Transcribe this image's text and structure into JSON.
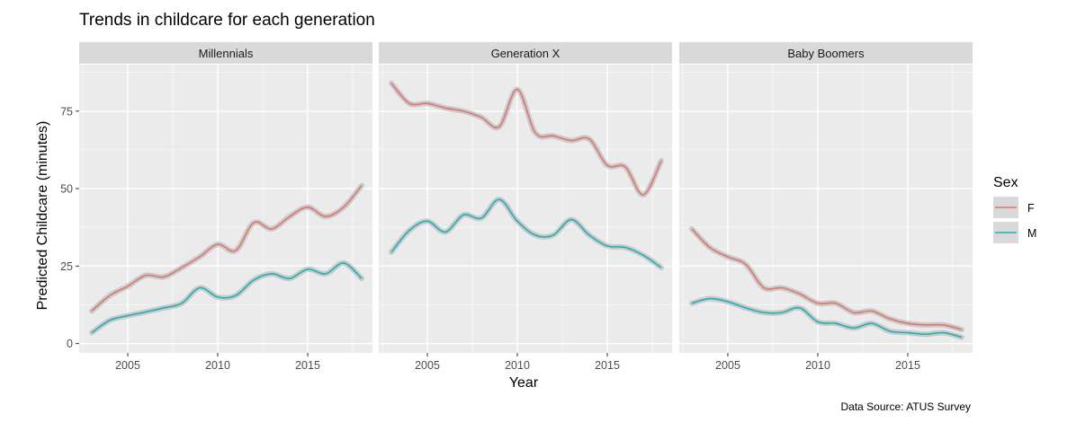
{
  "chart_data": {
    "type": "line",
    "title": "Trends in childcare for each generation",
    "xlabel": "Year",
    "ylabel": "Predicted Childcare (minutes)",
    "caption": "Data Source: ATUS Survey",
    "xlim": [
      2002.3,
      2018.6
    ],
    "ylim": [
      -3,
      90
    ],
    "x_ticks": [
      2005,
      2010,
      2015
    ],
    "y_ticks": [
      0,
      25,
      50,
      75
    ],
    "grid": true,
    "legend": {
      "title": "Sex",
      "position": "right",
      "entries": [
        {
          "label": "F",
          "color": "#E0766D"
        },
        {
          "label": "M",
          "color": "#20B1B7"
        }
      ]
    },
    "panels": [
      {
        "name": "Millennials",
        "series": [
          {
            "name": "F",
            "color": "#E0766D",
            "x": [
              2003,
              2004,
              2005,
              2006,
              2007,
              2008,
              2009,
              2010,
              2011,
              2012,
              2013,
              2014,
              2015,
              2016,
              2017,
              2018
            ],
            "y": [
              10.5,
              15.5,
              18.5,
              22,
              21.5,
              24.5,
              28,
              32,
              30,
              39,
              37,
              41,
              44,
              41,
              44,
              51
            ]
          },
          {
            "name": "M",
            "color": "#20B1B7",
            "x": [
              2003,
              2004,
              2005,
              2006,
              2007,
              2008,
              2009,
              2010,
              2011,
              2012,
              2013,
              2014,
              2015,
              2016,
              2017,
              2018
            ],
            "y": [
              3.5,
              7.5,
              9,
              10.2,
              11.5,
              13,
              18,
              15,
              15.5,
              20.5,
              22.5,
              21,
              24,
              22.5,
              26,
              21
            ]
          }
        ]
      },
      {
        "name": "Generation X",
        "series": [
          {
            "name": "F",
            "color": "#E0766D",
            "x": [
              2003,
              2004,
              2005,
              2006,
              2007,
              2008,
              2009,
              2010,
              2011,
              2012,
              2013,
              2014,
              2015,
              2016,
              2017,
              2018
            ],
            "y": [
              84,
              77.5,
              77.5,
              76,
              75,
              73,
              70,
              82,
              68,
              67,
              65.5,
              66,
              57.5,
              57,
              48,
              59
            ]
          },
          {
            "name": "M",
            "color": "#20B1B7",
            "x": [
              2003,
              2004,
              2005,
              2006,
              2007,
              2008,
              2009,
              2010,
              2011,
              2012,
              2013,
              2014,
              2015,
              2016,
              2017,
              2018
            ],
            "y": [
              29.5,
              36.5,
              39.5,
              36,
              41.5,
              40.5,
              46.5,
              39.5,
              35,
              35,
              40,
              35,
              31.5,
              31,
              28.5,
              24.5
            ]
          }
        ]
      },
      {
        "name": "Baby Boomers",
        "series": [
          {
            "name": "F",
            "color": "#E0766D",
            "x": [
              2003,
              2004,
              2005,
              2006,
              2007,
              2008,
              2009,
              2010,
              2011,
              2012,
              2013,
              2014,
              2015,
              2016,
              2017,
              2018
            ],
            "y": [
              37,
              31,
              28,
              25.5,
              18,
              18,
              16,
              13,
              13,
              10,
              10.5,
              8,
              6.5,
              6,
              6,
              4.5
            ]
          },
          {
            "name": "M",
            "color": "#20B1B7",
            "x": [
              2003,
              2004,
              2005,
              2006,
              2007,
              2008,
              2009,
              2010,
              2011,
              2012,
              2013,
              2014,
              2015,
              2016,
              2017,
              2018
            ],
            "y": [
              13,
              14.5,
              13.5,
              11.5,
              10,
              10,
              11.5,
              7,
              6.5,
              5,
              6.5,
              4,
              3.5,
              3,
              3.5,
              2
            ]
          }
        ]
      }
    ]
  }
}
